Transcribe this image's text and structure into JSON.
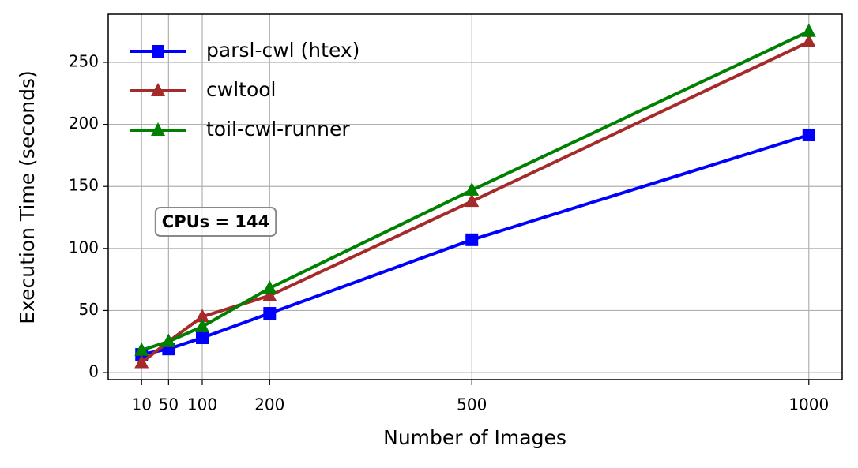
{
  "chart_data": {
    "type": "line",
    "xlabel": "Number of Images",
    "ylabel": "Execution Time (seconds)",
    "x": [
      10,
      50,
      100,
      200,
      500,
      1000
    ],
    "series": [
      {
        "name": "parsl-cwl (htex)",
        "color": "#0000ff",
        "marker": "square",
        "values": [
          14.6,
          19,
          28,
          47.7,
          107,
          191.5
        ]
      },
      {
        "name": "cwltool",
        "color": "#a52a2a",
        "marker": "triangle",
        "values": [
          8,
          25,
          45,
          62,
          138,
          266.5
        ]
      },
      {
        "name": "toil-cwl-runner",
        "color": "#008000",
        "marker": "triangle",
        "values": [
          18,
          25,
          37,
          68,
          147,
          275
        ]
      }
    ],
    "xlim": [
      -39.5,
      1049.5
    ],
    "xticks": [
      10,
      50,
      100,
      200,
      500,
      1000
    ],
    "ylim": [
      -5.7,
      288.8
    ],
    "yticks": [
      0,
      50,
      100,
      150,
      200,
      250
    ],
    "grid": true,
    "legend": "upper left",
    "annotation": "CPUs = 144"
  }
}
